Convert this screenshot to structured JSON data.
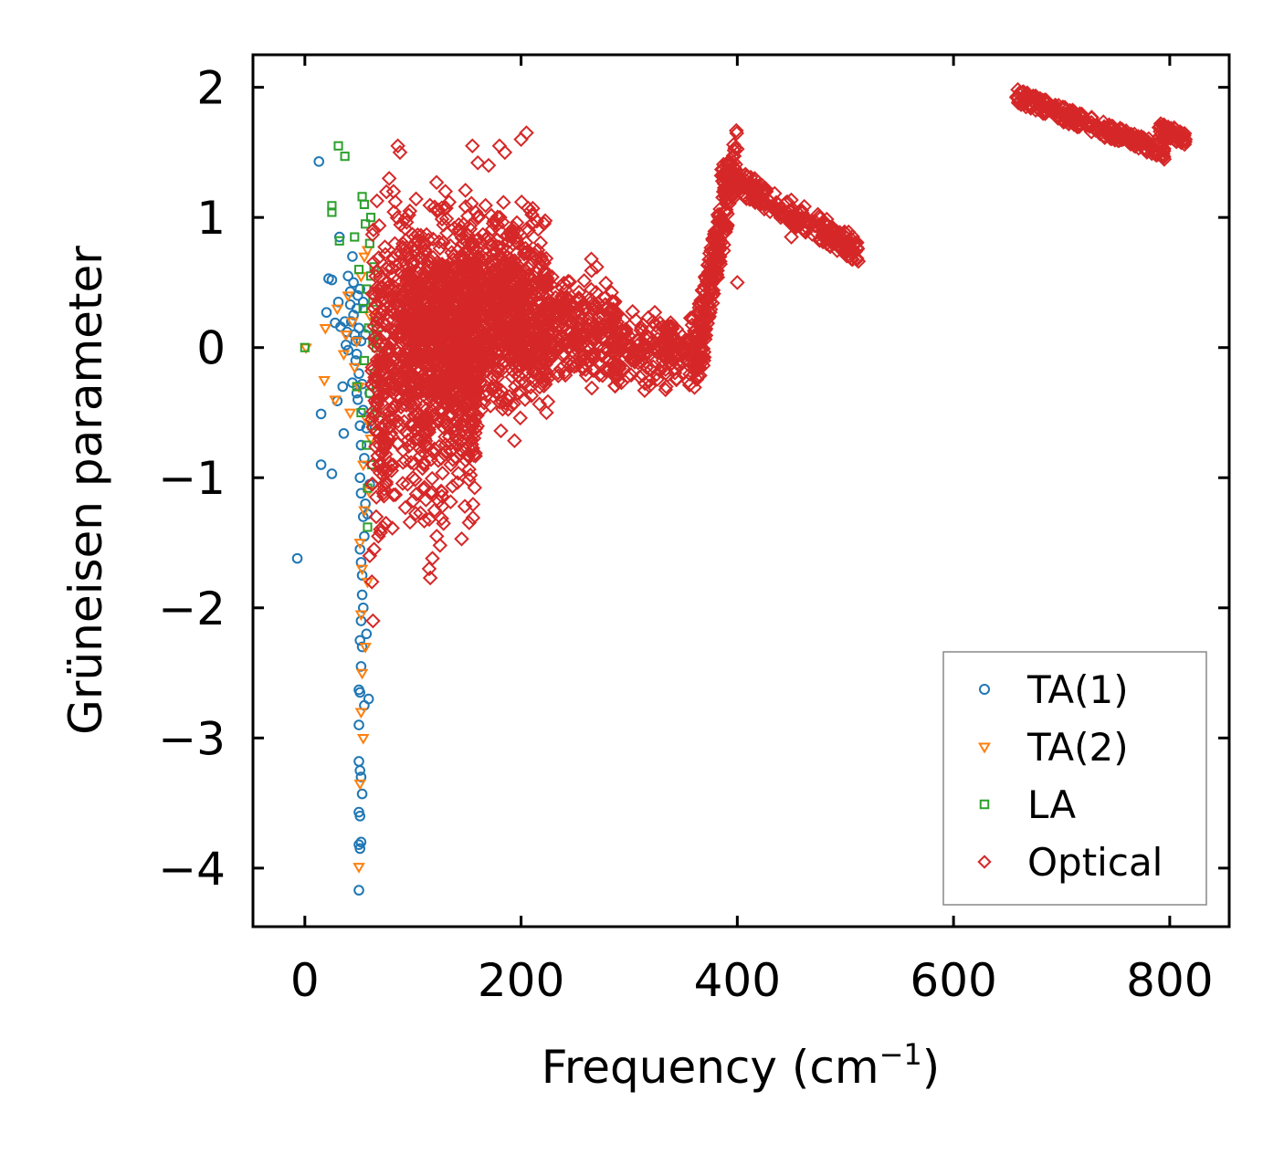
{
  "chart_data": {
    "type": "scatter",
    "title": "",
    "xlabel": "Frequency (cm",
    "xlabel_superscript": "−1",
    "xlabel_suffix": ")",
    "ylabel": "Grüneisen parameter",
    "xlim": [
      -48,
      855
    ],
    "ylim": [
      -4.45,
      2.25
    ],
    "xticks": [
      0,
      200,
      400,
      600,
      800
    ],
    "xtick_labels": [
      "0",
      "200",
      "400",
      "600",
      "800"
    ],
    "yticks": [
      2,
      1,
      0,
      -1,
      -2,
      -3,
      -4
    ],
    "ytick_labels": [
      "2",
      "1",
      "0",
      "−1",
      "−2",
      "−3",
      "−4"
    ],
    "legend_position": "lower-right",
    "grid": false,
    "series": [
      {
        "name": "TA(1)",
        "marker": "circle",
        "color": "#1f77b4",
        "points": [
          [
            -7,
            -1.62
          ],
          [
            13,
            1.43
          ],
          [
            15,
            -0.51
          ],
          [
            15,
            -0.9
          ],
          [
            20,
            0.27
          ],
          [
            22,
            0.53
          ],
          [
            25,
            -0.97
          ],
          [
            25,
            0.52
          ],
          [
            28,
            0.19
          ],
          [
            30,
            -0.41
          ],
          [
            31,
            0.35
          ],
          [
            32,
            0.85
          ],
          [
            33,
            0.16
          ],
          [
            35,
            -0.3
          ],
          [
            36,
            -0.66
          ],
          [
            37,
            0.2
          ],
          [
            38,
            0.02
          ],
          [
            39,
            0.12
          ],
          [
            40,
            0.55
          ],
          [
            40,
            -0.02
          ],
          [
            42,
            0.43
          ],
          [
            42,
            0.33
          ],
          [
            43,
            0.2
          ],
          [
            44,
            -0.27
          ],
          [
            44,
            0.7
          ],
          [
            45,
            0.5
          ],
          [
            45,
            0.25
          ],
          [
            46,
            0.1
          ],
          [
            47,
            -0.1
          ],
          [
            47,
            0.05
          ],
          [
            48,
            -0.05
          ],
          [
            48,
            0.3
          ],
          [
            48,
            -0.35
          ],
          [
            49,
            0.4
          ],
          [
            49,
            -0.4
          ],
          [
            50,
            0.15
          ],
          [
            50,
            -0.2
          ],
          [
            50,
            -2.63
          ],
          [
            50,
            -2.9
          ],
          [
            50,
            -3.18
          ],
          [
            50,
            -3.57
          ],
          [
            50,
            -3.82
          ],
          [
            50,
            -4.17
          ],
          [
            51,
            0.45
          ],
          [
            51,
            -0.6
          ],
          [
            51,
            -1.0
          ],
          [
            51,
            -1.55
          ],
          [
            51,
            -2.25
          ],
          [
            51,
            -2.65
          ],
          [
            51,
            -3.25
          ],
          [
            51,
            -3.6
          ],
          [
            51,
            -3.85
          ],
          [
            52,
            0.05
          ],
          [
            52,
            -0.75
          ],
          [
            52,
            -1.12
          ],
          [
            52,
            -1.65
          ],
          [
            52,
            -2.1
          ],
          [
            52,
            -2.45
          ],
          [
            52,
            -3.3
          ],
          [
            52,
            -3.8
          ],
          [
            53,
            -0.28
          ],
          [
            53,
            -1.75
          ],
          [
            53,
            -1.9
          ],
          [
            53,
            -2.3
          ],
          [
            53,
            -3.43
          ],
          [
            54,
            0.35
          ],
          [
            54,
            -0.48
          ],
          [
            54,
            -1.3
          ],
          [
            54,
            -2.0
          ],
          [
            55,
            -0.85
          ],
          [
            55,
            -1.45
          ],
          [
            55,
            -2.75
          ],
          [
            56,
            0.1
          ],
          [
            56,
            -1.2
          ],
          [
            57,
            -0.62
          ],
          [
            57,
            -2.2
          ],
          [
            58,
            -1.28
          ],
          [
            59,
            -2.7
          ],
          [
            60,
            -0.35
          ],
          [
            60,
            -1.05
          ]
        ]
      },
      {
        "name": "TA(2)",
        "marker": "triangle-down",
        "color": "#ff7f0e",
        "points": [
          [
            1,
            0.0
          ],
          [
            18,
            -0.25
          ],
          [
            19,
            0.15
          ],
          [
            28,
            -0.4
          ],
          [
            30,
            0.3
          ],
          [
            36,
            -0.05
          ],
          [
            38,
            0.1
          ],
          [
            40,
            0.4
          ],
          [
            42,
            -0.5
          ],
          [
            44,
            0.2
          ],
          [
            46,
            -0.15
          ],
          [
            48,
            0.05
          ],
          [
            50,
            -0.3
          ],
          [
            50,
            -3.99
          ],
          [
            51,
            -1.5
          ],
          [
            51,
            -3.35
          ],
          [
            52,
            0.55
          ],
          [
            52,
            -2.05
          ],
          [
            52,
            -2.8
          ],
          [
            53,
            -1.7
          ],
          [
            53,
            -2.5
          ],
          [
            54,
            -0.9
          ],
          [
            54,
            -3.0
          ],
          [
            55,
            0.7
          ],
          [
            55,
            -1.25
          ],
          [
            56,
            -2.3
          ],
          [
            57,
            -0.55
          ],
          [
            58,
            -1.8
          ],
          [
            58,
            0.75
          ],
          [
            59,
            -1.1
          ],
          [
            60,
            0.25
          ],
          [
            61,
            -0.7
          ]
        ]
      },
      {
        "name": "LA",
        "marker": "square",
        "color": "#2ca02c",
        "points": [
          [
            0,
            0.0
          ],
          [
            25,
            1.09
          ],
          [
            25,
            1.04
          ],
          [
            31,
            1.55
          ],
          [
            32,
            0.82
          ],
          [
            37,
            1.47
          ],
          [
            46,
            0.85
          ],
          [
            48,
            -0.3
          ],
          [
            50,
            0.6
          ],
          [
            52,
            -0.5
          ],
          [
            53,
            1.16
          ],
          [
            54,
            0.3
          ],
          [
            55,
            1.1
          ],
          [
            55,
            -0.1
          ],
          [
            56,
            0.95
          ],
          [
            57,
            0.45
          ],
          [
            57,
            -0.75
          ],
          [
            58,
            -1.38
          ],
          [
            58,
            -1.08
          ],
          [
            59,
            0.15
          ],
          [
            60,
            0.8
          ],
          [
            60,
            -0.35
          ],
          [
            61,
            1.0
          ],
          [
            61,
            0.55
          ],
          [
            62,
            -0.6
          ],
          [
            62,
            -0.9
          ],
          [
            63,
            0.35
          ],
          [
            63,
            0.05
          ],
          [
            64,
            -0.2
          ],
          [
            64,
            0.62
          ],
          [
            65,
            -0.45
          ],
          [
            65,
            0.2
          ],
          [
            66,
            0.0
          ],
          [
            66,
            -0.28
          ],
          [
            67,
            -0.5
          ],
          [
            67,
            0.1
          ]
        ]
      },
      {
        "name": "Optical",
        "marker": "diamond",
        "color": "#d62728",
        "clusters": [
          {
            "x": [
              62,
              160
            ],
            "y": [
              -1.6,
              1.4
            ],
            "n": 900
          },
          {
            "x": [
              90,
              200
            ],
            "y": [
              -0.8,
              1.2
            ],
            "n": 700
          },
          {
            "x": [
              150,
              225
            ],
            "y": [
              -0.6,
              1.4
            ],
            "n": 350
          },
          {
            "x": [
              195,
              225
            ],
            "y": [
              -0.6,
              0.9
            ],
            "n": 180
          },
          {
            "x": [
              225,
              290
            ],
            "y": [
              -0.4,
              0.65
            ],
            "n": 260
          },
          {
            "x": [
              285,
              370
            ],
            "y": [
              -0.4,
              0.35
            ],
            "n": 230
          },
          {
            "x": [
              360,
              400
            ],
            "y": [
              -0.1,
              1.5
            ],
            "n": 230
          },
          {
            "x": [
              385,
              512
            ],
            "y": [
              0.75,
              1.35
            ],
            "n": 260
          },
          {
            "x": [
              658,
              795
            ],
            "y": [
              1.5,
              1.93
            ],
            "n": 260
          },
          {
            "x": [
              790,
              815
            ],
            "y": [
              1.6,
              1.68
            ],
            "n": 50
          }
        ],
        "points": [
          [
            60,
            -1.6
          ],
          [
            62,
            -1.8
          ],
          [
            63,
            -2.1
          ],
          [
            64,
            -1.55
          ],
          [
            66,
            -1.3
          ],
          [
            68,
            -1.45
          ],
          [
            70,
            -1.42
          ],
          [
            72,
            -1.38
          ],
          [
            75,
            -1.35
          ],
          [
            78,
            1.3
          ],
          [
            82,
            1.2
          ],
          [
            86,
            1.55
          ],
          [
            88,
            1.5
          ],
          [
            95,
            -1.05
          ],
          [
            100,
            -1.0
          ],
          [
            110,
            -0.9
          ],
          [
            112,
            -1.17
          ],
          [
            115,
            -1.32
          ],
          [
            115,
            -1.7
          ],
          [
            116,
            -1.77
          ],
          [
            118,
            -1.62
          ],
          [
            120,
            -1.25
          ],
          [
            120,
            1.08
          ],
          [
            122,
            -1.45
          ],
          [
            124,
            -1.18
          ],
          [
            125,
            -1.52
          ],
          [
            127,
            -1.22
          ],
          [
            130,
            1.2
          ],
          [
            135,
            -0.9
          ],
          [
            140,
            -0.85
          ],
          [
            145,
            -1.47
          ],
          [
            148,
            -1.22
          ],
          [
            155,
            1.55
          ],
          [
            160,
            1.42
          ],
          [
            170,
            1.4
          ],
          [
            180,
            1.55
          ],
          [
            185,
            1.5
          ],
          [
            200,
            1.6
          ],
          [
            205,
            1.65
          ],
          [
            265,
            0.68
          ],
          [
            270,
            0.62
          ],
          [
            400,
            0.5
          ],
          [
            450,
            0.85
          ],
          [
            500,
            0.8
          ],
          [
            510,
            0.8
          ]
        ]
      }
    ]
  }
}
